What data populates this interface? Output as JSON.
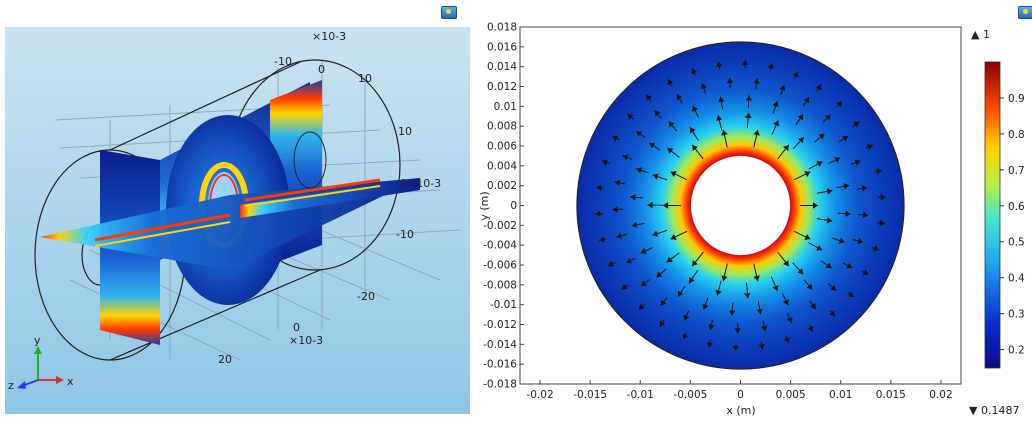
{
  "colors": {
    "viewport_bg_top": "#c9e4f3",
    "viewport_bg_bottom": "#8fc6e5",
    "axis_x": "#e03030",
    "axis_y": "#20b020",
    "axis_z": "#2040e0"
  },
  "icons": [
    "snapshot-icon",
    "snapshot-icon"
  ],
  "left_view": {
    "ticks": [
      {
        "text": "-10"
      },
      {
        "text": "×10-3"
      },
      {
        "text": "0"
      },
      {
        "text": "10"
      },
      {
        "text": "10"
      },
      {
        "text": "0"
      },
      {
        "text": "×10-3"
      },
      {
        "text": "-10"
      },
      {
        "text": "-20"
      },
      {
        "text": "0"
      },
      {
        "text": "×10-3"
      },
      {
        "text": "20"
      }
    ],
    "triad": {
      "y": "y",
      "z": "z",
      "x": "x"
    }
  },
  "chart_data": {
    "type": "heatmap",
    "description_free": true,
    "xlabel": "x (m)",
    "ylabel": "y (m)",
    "xlim": [
      -0.022,
      0.022
    ],
    "ylim": [
      -0.018,
      0.018
    ],
    "x_ticks": [
      "-0.02",
      "-0.015",
      "-0.01",
      "-0.005",
      "0",
      "0.005",
      "0.01",
      "0.015",
      "0.02"
    ],
    "x_tick_values": [
      -0.02,
      -0.015,
      -0.01,
      -0.005,
      0,
      0.005,
      0.01,
      0.015,
      0.02
    ],
    "y_ticks": [
      "0.018",
      "0.016",
      "0.014",
      "0.012",
      "0.01",
      "0.008",
      "0.006",
      "0.004",
      "0.002",
      "0",
      "-0.002",
      "-0.004",
      "-0.006",
      "-0.008",
      "-0.01",
      "-0.012",
      "-0.014",
      "-0.016",
      "-0.018"
    ],
    "y_tick_values": [
      0.018,
      0.016,
      0.014,
      0.012,
      0.01,
      0.008,
      0.006,
      0.004,
      0.002,
      0,
      -0.002,
      -0.004,
      -0.006,
      -0.008,
      -0.01,
      -0.012,
      -0.014,
      -0.016,
      -0.018
    ],
    "annulus": {
      "inner_radius": 0.005,
      "outer_radius": 0.0165,
      "center": [
        0,
        0
      ]
    },
    "colorbar": {
      "max_label": "▲ 1",
      "min_label": "▼ 0.1487",
      "max": 1,
      "min": 0.1487,
      "ticks": [
        "0.9",
        "0.8",
        "0.7",
        "0.6",
        "0.5",
        "0.4",
        "0.3",
        "0.2"
      ],
      "tick_values": [
        0.9,
        0.8,
        0.7,
        0.6,
        0.5,
        0.4,
        0.3,
        0.2
      ],
      "colormap": "rainbow"
    },
    "grid": false,
    "arrows": "radial-outward"
  }
}
